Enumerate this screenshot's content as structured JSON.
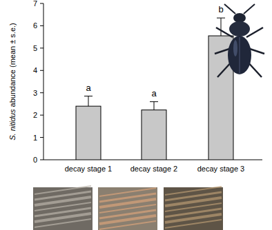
{
  "chart_data": {
    "type": "bar",
    "y_label": "S. nitidus abundance (mean ± s.e.)",
    "categories": [
      "decay stage 1",
      "decay stage 2",
      "decay stage 3"
    ],
    "values": [
      2.4,
      2.23,
      5.55
    ],
    "errors": [
      0.45,
      0.37,
      0.8
    ],
    "annotations": [
      "a",
      "a",
      "b"
    ],
    "color": "#c8c8c8",
    "ylim": [
      0,
      7
    ],
    "yticks": [
      0,
      1,
      2,
      3,
      4,
      5,
      6,
      7
    ],
    "grid": false
  }
}
